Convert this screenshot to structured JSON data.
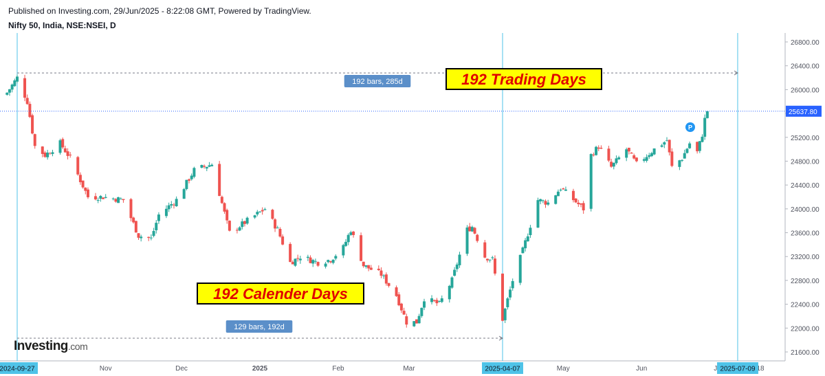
{
  "header": {
    "published": "Published on Investing.com, 29/Jun/2025 - 8:22:08 GMT, Powered by TradingView.",
    "symbol": "Nifty 50, India, NSE:NSEI, D"
  },
  "logo": {
    "name": "Investing",
    "suffix": ".com"
  },
  "colors": {
    "up": "#26a69a",
    "down": "#ef5350",
    "marker": "#4fc3e8",
    "price_line": "#2962ff",
    "label_bg": "#5b8fc9",
    "annotation_bg": "#ffff00"
  },
  "chart_data": {
    "type": "candlestick",
    "title": "Nifty 50, India, NSE:NSEI, D",
    "ylim": [
      21450,
      26950
    ],
    "y_ticks": [
      21600,
      22000,
      22400,
      22800,
      23200,
      23600,
      24000,
      24400,
      24800,
      25200,
      25600,
      26000,
      26400,
      26800
    ],
    "y_tick_labels": [
      "21600.00",
      "22000.00",
      "22400.00",
      "22800.00",
      "23200.00",
      "23600.00",
      "24000.00",
      "24400.00",
      "24800.00",
      "25200.00",
      "25600.00",
      "26000.00",
      "26400.00",
      "26800.00"
    ],
    "x_labels": [
      {
        "label": "Nov",
        "date": "2024-11-01"
      },
      {
        "label": "Dec",
        "date": "2024-12-01"
      },
      {
        "label": "2025",
        "date": "2025-01-01",
        "bold": true
      },
      {
        "label": "Feb",
        "date": "2025-02-01"
      },
      {
        "label": "Mar",
        "date": "2025-03-01"
      },
      {
        "label": "May",
        "date": "2025-05-01"
      },
      {
        "label": "Jun",
        "date": "2025-06-01"
      },
      {
        "label": "Ju",
        "date": "2025-07-01"
      },
      {
        "label": "18",
        "date": "2025-07-18"
      }
    ],
    "highlighted_dates": [
      "2024-09-27",
      "2025-04-07",
      "2025-07-09"
    ],
    "last_price": 25637.8,
    "last_price_label": "25637.80",
    "pivots": [
      {
        "date": "2024-09-23",
        "close": 25950
      },
      {
        "date": "2024-09-27",
        "close": 26200
      },
      {
        "date": "2024-10-01",
        "close": 25800
      },
      {
        "date": "2024-10-04",
        "close": 25050
      },
      {
        "date": "2024-10-08",
        "close": 24900
      },
      {
        "date": "2024-10-14",
        "close": 25100
      },
      {
        "date": "2024-10-18",
        "close": 24850
      },
      {
        "date": "2024-10-25",
        "close": 24200
      },
      {
        "date": "2024-10-31",
        "close": 24200
      },
      {
        "date": "2024-11-08",
        "close": 24150
      },
      {
        "date": "2024-11-14",
        "close": 23550
      },
      {
        "date": "2024-11-19",
        "close": 23500
      },
      {
        "date": "2024-11-22",
        "close": 23900
      },
      {
        "date": "2024-11-29",
        "close": 24150
      },
      {
        "date": "2024-12-06",
        "close": 24650
      },
      {
        "date": "2024-12-13",
        "close": 24750
      },
      {
        "date": "2024-12-20",
        "close": 23600
      },
      {
        "date": "2024-12-27",
        "close": 23800
      },
      {
        "date": "2025-01-03",
        "close": 24000
      },
      {
        "date": "2025-01-08",
        "close": 23650
      },
      {
        "date": "2025-01-13",
        "close": 23100
      },
      {
        "date": "2025-01-17",
        "close": 23200
      },
      {
        "date": "2025-01-24",
        "close": 23100
      },
      {
        "date": "2025-01-29",
        "close": 23150
      },
      {
        "date": "2025-02-03",
        "close": 23350
      },
      {
        "date": "2025-02-06",
        "close": 23650
      },
      {
        "date": "2025-02-11",
        "close": 23050
      },
      {
        "date": "2025-02-18",
        "close": 22900
      },
      {
        "date": "2025-02-24",
        "close": 22550
      },
      {
        "date": "2025-02-28",
        "close": 22100
      },
      {
        "date": "2025-03-04",
        "close": 22100
      },
      {
        "date": "2025-03-07",
        "close": 22500
      },
      {
        "date": "2025-03-13",
        "close": 22400
      },
      {
        "date": "2025-03-18",
        "close": 22800
      },
      {
        "date": "2025-03-24",
        "close": 23650
      },
      {
        "date": "2025-03-26",
        "close": 23700
      },
      {
        "date": "2025-03-31",
        "close": 23200
      },
      {
        "date": "2025-04-03",
        "close": 23150
      },
      {
        "date": "2025-04-07",
        "close": 22150
      },
      {
        "date": "2025-04-11",
        "close": 22800
      },
      {
        "date": "2025-04-15",
        "close": 23300
      },
      {
        "date": "2025-04-21",
        "close": 24150
      },
      {
        "date": "2025-04-25",
        "close": 24100
      },
      {
        "date": "2025-04-30",
        "close": 24350
      },
      {
        "date": "2025-05-09",
        "close": 24000
      },
      {
        "date": "2025-05-12",
        "close": 24900
      },
      {
        "date": "2025-05-15",
        "close": 25050
      },
      {
        "date": "2025-05-20",
        "close": 24700
      },
      {
        "date": "2025-05-26",
        "close": 25000
      },
      {
        "date": "2025-05-30",
        "close": 24750
      },
      {
        "date": "2025-06-06",
        "close": 25000
      },
      {
        "date": "2025-06-11",
        "close": 25150
      },
      {
        "date": "2025-06-13",
        "close": 24700
      },
      {
        "date": "2025-06-17",
        "close": 24850
      },
      {
        "date": "2025-06-20",
        "close": 25100
      },
      {
        "date": "2025-06-23",
        "close": 24950
      },
      {
        "date": "2025-06-25",
        "close": 25250
      },
      {
        "date": "2025-06-26",
        "close": 25500
      },
      {
        "date": "2025-06-27",
        "close": 25637.8
      }
    ],
    "annotations": {
      "trading_days": "192 Trading Days",
      "calendar_days": "192 Calender Days",
      "range_top": {
        "label": "192 bars, 285d",
        "from": "2024-09-27",
        "to": "2025-07-09",
        "price": 26280
      },
      "range_bottom": {
        "label": "129 bars, 192d",
        "from": "2024-09-27",
        "to": "2025-04-07",
        "price": 21830
      },
      "marker": "P"
    }
  }
}
